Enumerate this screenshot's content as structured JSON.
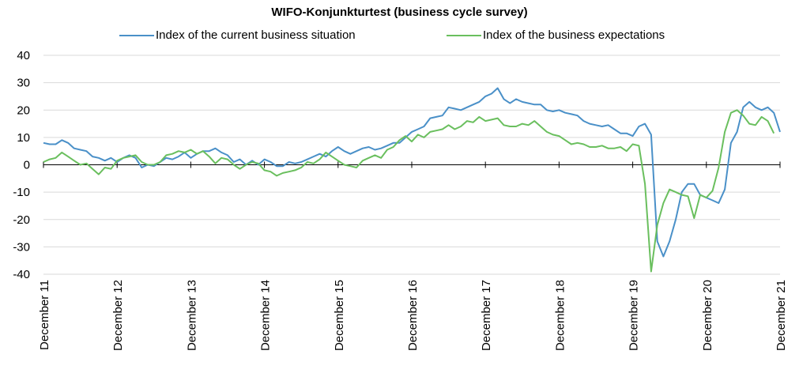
{
  "chart_data": {
    "type": "line",
    "title": "WIFO-Konjunkturtest (business cycle survey)",
    "xlabel": "",
    "ylabel": "",
    "ylim": [
      -40,
      40
    ],
    "yticks": [
      40,
      30,
      20,
      10,
      0,
      -10,
      -20,
      -30,
      -40
    ],
    "xtick_labels": [
      "December 11",
      "December 12",
      "December 13",
      "December 14",
      "December 15",
      "December 16",
      "December 17",
      "December 18",
      "December 19",
      "December 20",
      "December 21"
    ],
    "legend_position": "top",
    "grid": "horizontal",
    "x_start": "2011-12",
    "x_end": "2021-12",
    "series": [
      {
        "name": "Index of the current business situation",
        "color": "#4a90c8",
        "values": [
          8,
          7.5,
          7.5,
          9,
          8,
          6,
          5.5,
          5,
          3,
          2.5,
          1.5,
          2.5,
          1,
          2.5,
          3.5,
          2.5,
          -1,
          0,
          -0.5,
          1,
          2.5,
          2,
          3,
          4.5,
          2.5,
          4,
          5,
          5,
          6,
          4.5,
          3.5,
          1,
          2,
          0,
          1.5,
          0,
          2,
          1,
          -0.5,
          -0.5,
          1,
          0.5,
          1,
          2,
          3,
          4,
          3,
          5,
          6.5,
          5,
          4,
          5,
          6,
          6.5,
          5.5,
          6,
          7,
          8,
          8,
          10,
          12,
          13,
          14,
          17,
          17.5,
          18,
          21,
          20.5,
          20,
          21,
          22,
          23,
          25,
          26,
          28,
          24,
          22.5,
          24,
          23,
          22.5,
          22,
          22,
          20,
          19.5,
          20,
          19,
          18.5,
          18,
          16,
          15,
          14.5,
          14,
          14.5,
          13,
          11.5,
          11.5,
          10.5,
          14,
          15,
          11,
          -28,
          -33.5,
          -28,
          -20,
          -10,
          -7,
          -7,
          -11,
          -12,
          -13,
          -14,
          -9,
          8,
          12,
          21,
          23,
          21,
          20,
          21,
          19,
          12
        ]
      },
      {
        "name": "Index of the business expectations",
        "color": "#6abf5e",
        "values": [
          1,
          2,
          2.5,
          4.5,
          3,
          1.5,
          0,
          0.5,
          -1.5,
          -3.5,
          -1,
          -1.5,
          1.5,
          2.5,
          3,
          3.5,
          1,
          0,
          0,
          1,
          3.5,
          4,
          5,
          4.5,
          5.5,
          4,
          5,
          3,
          0.5,
          2.5,
          2,
          0,
          -1.5,
          0,
          1,
          0.5,
          -2,
          -2.5,
          -4,
          -3,
          -2.5,
          -2,
          -1,
          1,
          0.5,
          2,
          4.5,
          3,
          1.5,
          0,
          -0.5,
          -1,
          1.5,
          2.5,
          3.5,
          2.5,
          5.5,
          6.5,
          9,
          10.5,
          8.5,
          11,
          10,
          12,
          12.5,
          13,
          14.5,
          13,
          14,
          16,
          15.5,
          17.5,
          16,
          16.5,
          17,
          14.5,
          14,
          14,
          15,
          14.5,
          16,
          14,
          12,
          11,
          10.5,
          9,
          7.5,
          8,
          7.5,
          6.5,
          6.5,
          7,
          6,
          6,
          6.5,
          5,
          7.5,
          7,
          -7,
          -39,
          -22,
          -14,
          -9,
          -10,
          -11,
          -11.5,
          -19.5,
          -11,
          -12,
          -9.5,
          -1,
          12,
          19,
          20,
          18,
          15,
          14.5,
          17.5,
          16,
          11.5
        ]
      }
    ]
  }
}
